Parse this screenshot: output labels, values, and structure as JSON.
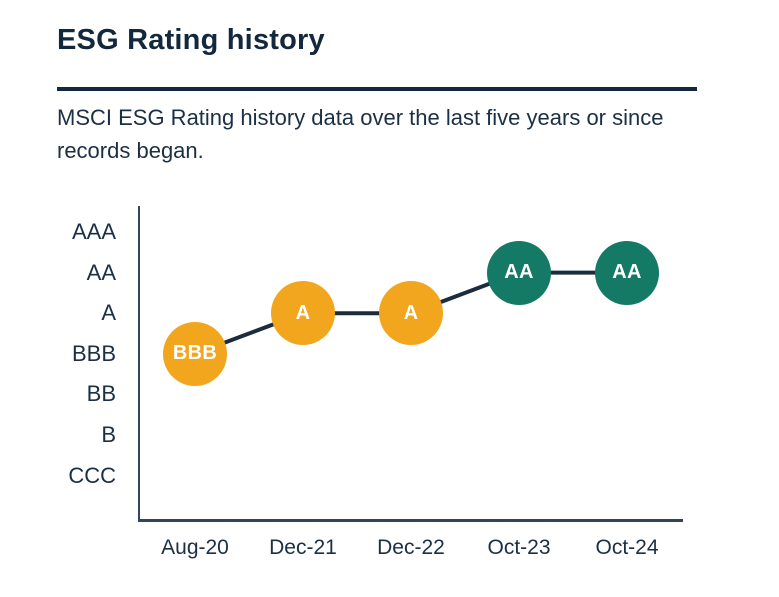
{
  "header": {
    "title": "ESG Rating history",
    "subtitle_line1": "MSCI ESG Rating history data over the last five years or since",
    "subtitle_line2": "records began."
  },
  "chart_data": {
    "type": "line",
    "title": "ESG Rating history",
    "x": [
      "Aug-20",
      "Dec-21",
      "Dec-22",
      "Oct-23",
      "Oct-24"
    ],
    "series": [
      {
        "name": "MSCI ESG Rating",
        "values": [
          "BBB",
          "A",
          "A",
          "AA",
          "AA"
        ]
      }
    ],
    "y_scale_top_to_bottom": [
      "AAA",
      "AA",
      "A",
      "BBB",
      "BB",
      "B",
      "CCC"
    ],
    "point_color_names": [
      "amber",
      "amber",
      "amber",
      "teal",
      "teal"
    ],
    "colors": {
      "amber": "#F2A61D",
      "teal": "#147A66",
      "line": "#1B2C3F",
      "axis": "#33455A",
      "text": "#1B2F45",
      "title": "#13283C"
    },
    "legend": "none",
    "grid": false
  }
}
